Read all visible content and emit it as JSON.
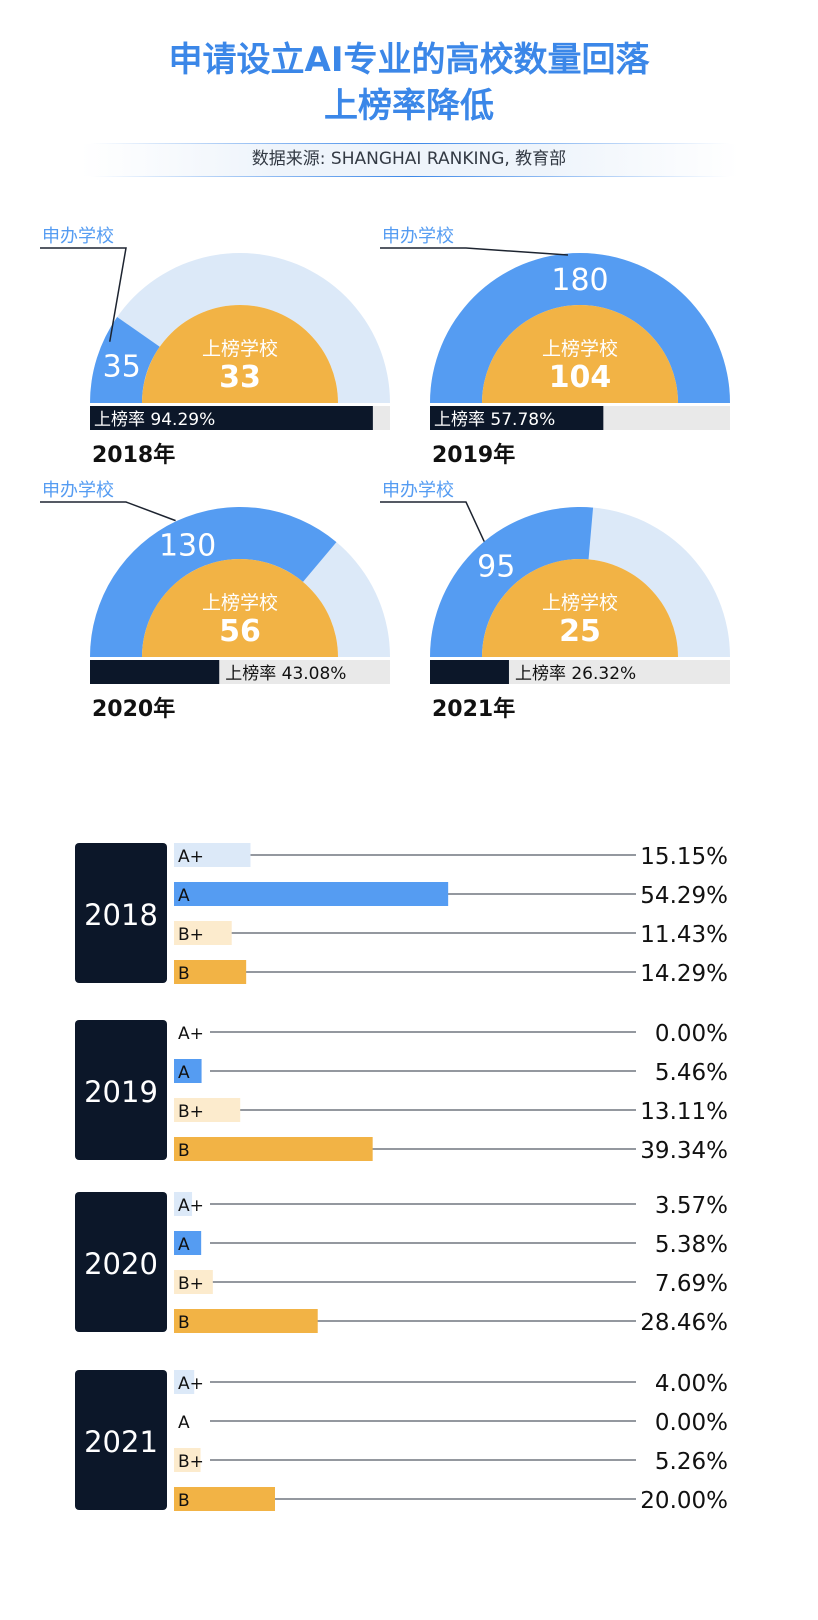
{
  "title": {
    "line1": "申请设立AI专业的高校数量回落",
    "line2": "上榜率降低"
  },
  "source": "数据来源: SHANGHAI RANKING, 教育部",
  "colors": {
    "blue": "#559cf2",
    "light_blue": "#dce9f8",
    "orange": "#f2b345",
    "light_orange": "#fcebcd",
    "navy": "#0c1729",
    "gray": "#e9e9e9"
  },
  "chart_data": [
    {
      "type": "gauge",
      "title": "",
      "label_applied": "申办学校",
      "label_ranked": "上榜学校",
      "label_rate": "上榜率",
      "years": [
        {
          "year_label": "2018年",
          "applied": 35,
          "ranked": 33,
          "rate_text": "94.29%",
          "rate": 94.29
        },
        {
          "year_label": "2019年",
          "applied": 180,
          "ranked": 104,
          "rate_text": "57.78%",
          "rate": 57.78
        },
        {
          "year_label": "2020年",
          "applied": 130,
          "ranked": 56,
          "rate_text": "43.08%",
          "rate": 43.08
        },
        {
          "year_label": "2021年",
          "applied": 95,
          "ranked": 25,
          "rate_text": "26.32%",
          "rate": 26.32
        }
      ],
      "scale_max": 180
    },
    {
      "type": "bar",
      "title": "",
      "categories": [
        "A+",
        "A",
        "B+",
        "B"
      ],
      "groups": [
        {
          "year": "2018",
          "values": [
            15.15,
            54.29,
            11.43,
            14.29
          ],
          "labels": [
            "15.15%",
            "54.29%",
            "11.43%",
            "14.29%"
          ]
        },
        {
          "year": "2019",
          "values": [
            0.0,
            5.46,
            13.11,
            39.34
          ],
          "labels": [
            "0.00%",
            "5.46%",
            "13.11%",
            "39.34%"
          ]
        },
        {
          "year": "2020",
          "values": [
            3.57,
            5.38,
            7.69,
            28.46
          ],
          "labels": [
            "3.57%",
            "5.38%",
            "7.69%",
            "28.46%"
          ]
        },
        {
          "year": "2021",
          "values": [
            4.0,
            0.0,
            5.26,
            20.0
          ],
          "labels": [
            "4.00%",
            "0.00%",
            "5.26%",
            "20.00%"
          ]
        }
      ],
      "xlim": [
        0,
        100
      ]
    }
  ]
}
